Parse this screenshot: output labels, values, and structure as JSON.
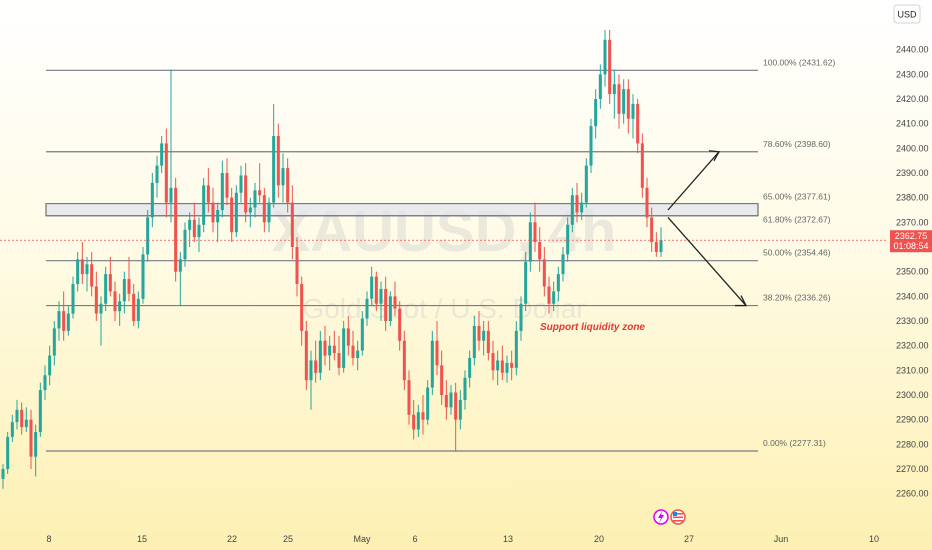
{
  "currency_button": "USD",
  "watermark": {
    "symbol": "XAUUSD, 4h",
    "description": "Gold Spot / U.S. Dollar"
  },
  "current_price": {
    "price": "2362.75",
    "countdown": "01:08:54",
    "value": 2362.75
  },
  "annotation": "Support liquidity zone",
  "fib_levels": [
    {
      "label": "100.00% (2431.62)",
      "value": 2431.62
    },
    {
      "label": "78.60% (2398.60)",
      "value": 2398.6
    },
    {
      "label": "65.00% (2377.61)",
      "value": 2377.61
    },
    {
      "label": "61.80% (2372.67)",
      "value": 2372.67
    },
    {
      "label": "50.00% (2354.46)",
      "value": 2354.46
    },
    {
      "label": "38.20% (2336.26)",
      "value": 2336.26
    },
    {
      "label": "0.00% (2277.31)",
      "value": 2277.31
    }
  ],
  "colors": {
    "up": "#26a69a",
    "down": "#ef5350",
    "fib_line": "#787b86",
    "zone": "#e0e3eb",
    "price_tag": "#ef5350",
    "annotation": "#e53935"
  },
  "chart_data": {
    "type": "candlestick",
    "symbol": "XAUUSD",
    "timeframe": "4h",
    "ylim": [
      2255,
      2450
    ],
    "yticks": [
      2260,
      2270,
      2280,
      2290,
      2300,
      2310,
      2320,
      2330,
      2340,
      2350,
      2360,
      2370,
      2380,
      2390,
      2400,
      2410,
      2420,
      2430,
      2440
    ],
    "xticks": [
      "8",
      "15",
      "22",
      "25",
      "May",
      "6",
      "13",
      "20",
      "27",
      "Jun",
      "10"
    ],
    "zone": {
      "low": 2372.67,
      "high": 2377.61
    },
    "projection": [
      {
        "from": [
          2375,
          "20"
        ],
        "direction": "up",
        "target": 2398.6
      },
      {
        "from": [
          2373,
          "20"
        ],
        "direction": "down",
        "target": 2336.26
      }
    ],
    "candles": [
      [
        2266,
        2272,
        2262,
        2270
      ],
      [
        2270,
        2285,
        2268,
        2283
      ],
      [
        2283,
        2292,
        2281,
        2289
      ],
      [
        2289,
        2298,
        2286,
        2294
      ],
      [
        2294,
        2297,
        2284,
        2287
      ],
      [
        2287,
        2295,
        2285,
        2290
      ],
      [
        2290,
        2294,
        2270,
        2275
      ],
      [
        2275,
        2288,
        2267,
        2285
      ],
      [
        2285,
        2305,
        2283,
        2302
      ],
      [
        2302,
        2312,
        2298,
        2308
      ],
      [
        2308,
        2320,
        2304,
        2316
      ],
      [
        2316,
        2330,
        2312,
        2327
      ],
      [
        2327,
        2338,
        2322,
        2334
      ],
      [
        2334,
        2342,
        2322,
        2326
      ],
      [
        2326,
        2336,
        2324,
        2333
      ],
      [
        2333,
        2348,
        2331,
        2345
      ],
      [
        2345,
        2358,
        2342,
        2355
      ],
      [
        2355,
        2362,
        2345,
        2349
      ],
      [
        2349,
        2356,
        2342,
        2353
      ],
      [
        2353,
        2358,
        2340,
        2344
      ],
      [
        2344,
        2350,
        2330,
        2333
      ],
      [
        2333,
        2340,
        2320,
        2337
      ],
      [
        2337,
        2352,
        2334,
        2349
      ],
      [
        2349,
        2356,
        2340,
        2342
      ],
      [
        2342,
        2346,
        2330,
        2334
      ],
      [
        2334,
        2341,
        2328,
        2338
      ],
      [
        2338,
        2350,
        2333,
        2347
      ],
      [
        2347,
        2356,
        2338,
        2341
      ],
      [
        2341,
        2345,
        2328,
        2330
      ],
      [
        2330,
        2342,
        2327,
        2339
      ],
      [
        2339,
        2360,
        2337,
        2357
      ],
      [
        2357,
        2375,
        2354,
        2372
      ],
      [
        2372,
        2390,
        2368,
        2386
      ],
      [
        2386,
        2397,
        2380,
        2393
      ],
      [
        2393,
        2405,
        2390,
        2402
      ],
      [
        2402,
        2408,
        2372,
        2378
      ],
      [
        2378,
        2432,
        2370,
        2384
      ],
      [
        2384,
        2388,
        2346,
        2350
      ],
      [
        2350,
        2358,
        2336,
        2355
      ],
      [
        2355,
        2370,
        2352,
        2367
      ],
      [
        2367,
        2374,
        2360,
        2371
      ],
      [
        2371,
        2378,
        2362,
        2364
      ],
      [
        2364,
        2372,
        2358,
        2369
      ],
      [
        2369,
        2388,
        2366,
        2385
      ],
      [
        2385,
        2392,
        2374,
        2378
      ],
      [
        2378,
        2384,
        2366,
        2370
      ],
      [
        2370,
        2378,
        2362,
        2375
      ],
      [
        2375,
        2395,
        2372,
        2390
      ],
      [
        2390,
        2396,
        2377,
        2380
      ],
      [
        2380,
        2384,
        2362,
        2366
      ],
      [
        2366,
        2385,
        2364,
        2382
      ],
      [
        2382,
        2393,
        2378,
        2389
      ],
      [
        2389,
        2394,
        2370,
        2374
      ],
      [
        2374,
        2380,
        2368,
        2376
      ],
      [
        2376,
        2386,
        2372,
        2383
      ],
      [
        2383,
        2394,
        2378,
        2381
      ],
      [
        2381,
        2384,
        2366,
        2370
      ],
      [
        2370,
        2380,
        2366,
        2378
      ],
      [
        2378,
        2418,
        2376,
        2405
      ],
      [
        2405,
        2410,
        2380,
        2385
      ],
      [
        2385,
        2398,
        2378,
        2392
      ],
      [
        2392,
        2396,
        2374,
        2378
      ],
      [
        2378,
        2385,
        2355,
        2360
      ],
      [
        2360,
        2364,
        2340,
        2345
      ],
      [
        2345,
        2348,
        2320,
        2326
      ],
      [
        2326,
        2330,
        2302,
        2306
      ],
      [
        2306,
        2318,
        2294,
        2314
      ],
      [
        2314,
        2322,
        2305,
        2309
      ],
      [
        2309,
        2326,
        2306,
        2322
      ],
      [
        2322,
        2328,
        2312,
        2316
      ],
      [
        2316,
        2324,
        2310,
        2320
      ],
      [
        2320,
        2326,
        2314,
        2317
      ],
      [
        2317,
        2324,
        2308,
        2311
      ],
      [
        2311,
        2330,
        2309,
        2327
      ],
      [
        2327,
        2332,
        2316,
        2320
      ],
      [
        2320,
        2326,
        2312,
        2315
      ],
      [
        2315,
        2322,
        2310,
        2318
      ],
      [
        2318,
        2334,
        2316,
        2331
      ],
      [
        2331,
        2342,
        2328,
        2339
      ],
      [
        2339,
        2352,
        2336,
        2348
      ],
      [
        2348,
        2350,
        2334,
        2337
      ],
      [
        2337,
        2346,
        2330,
        2343
      ],
      [
        2343,
        2348,
        2326,
        2330
      ],
      [
        2330,
        2342,
        2328,
        2340
      ],
      [
        2340,
        2346,
        2332,
        2335
      ],
      [
        2335,
        2338,
        2318,
        2322
      ],
      [
        2322,
        2326,
        2302,
        2306
      ],
      [
        2306,
        2310,
        2288,
        2292
      ],
      [
        2292,
        2298,
        2282,
        2286
      ],
      [
        2286,
        2296,
        2283,
        2293
      ],
      [
        2293,
        2300,
        2284,
        2290
      ],
      [
        2290,
        2306,
        2288,
        2303
      ],
      [
        2303,
        2326,
        2300,
        2322
      ],
      [
        2322,
        2330,
        2308,
        2312
      ],
      [
        2312,
        2318,
        2296,
        2300
      ],
      [
        2300,
        2306,
        2290,
        2295
      ],
      [
        2295,
        2304,
        2292,
        2301
      ],
      [
        2301,
        2305,
        2277,
        2290
      ],
      [
        2290,
        2302,
        2286,
        2298
      ],
      [
        2298,
        2310,
        2294,
        2307
      ],
      [
        2307,
        2318,
        2303,
        2315
      ],
      [
        2315,
        2332,
        2312,
        2328
      ],
      [
        2328,
        2334,
        2318,
        2322
      ],
      [
        2322,
        2330,
        2316,
        2326
      ],
      [
        2326,
        2330,
        2314,
        2317
      ],
      [
        2317,
        2322,
        2306,
        2310
      ],
      [
        2310,
        2318,
        2304,
        2314
      ],
      [
        2314,
        2320,
        2306,
        2309
      ],
      [
        2309,
        2316,
        2305,
        2313
      ],
      [
        2313,
        2318,
        2306,
        2311
      ],
      [
        2311,
        2330,
        2308,
        2326
      ],
      [
        2326,
        2340,
        2322,
        2337
      ],
      [
        2337,
        2358,
        2334,
        2354
      ],
      [
        2354,
        2374,
        2350,
        2370
      ],
      [
        2370,
        2378,
        2358,
        2362
      ],
      [
        2362,
        2368,
        2350,
        2355
      ],
      [
        2355,
        2360,
        2340,
        2344
      ],
      [
        2344,
        2348,
        2333,
        2337
      ],
      [
        2337,
        2346,
        2334,
        2342
      ],
      [
        2342,
        2352,
        2338,
        2349
      ],
      [
        2349,
        2360,
        2346,
        2357
      ],
      [
        2357,
        2372,
        2354,
        2369
      ],
      [
        2369,
        2384,
        2366,
        2381
      ],
      [
        2381,
        2386,
        2370,
        2374
      ],
      [
        2374,
        2382,
        2371,
        2378
      ],
      [
        2378,
        2396,
        2376,
        2393
      ],
      [
        2393,
        2412,
        2390,
        2409
      ],
      [
        2409,
        2424,
        2404,
        2420
      ],
      [
        2420,
        2434,
        2416,
        2430
      ],
      [
        2430,
        2448,
        2425,
        2444
      ],
      [
        2444,
        2448,
        2418,
        2422
      ],
      [
        2422,
        2432,
        2412,
        2426
      ],
      [
        2426,
        2430,
        2408,
        2414
      ],
      [
        2414,
        2428,
        2410,
        2424
      ],
      [
        2424,
        2428,
        2406,
        2412
      ],
      [
        2412,
        2422,
        2404,
        2418
      ],
      [
        2418,
        2420,
        2398,
        2402
      ],
      [
        2402,
        2406,
        2380,
        2384
      ],
      [
        2384,
        2388,
        2368,
        2372
      ],
      [
        2372,
        2376,
        2358,
        2362
      ],
      [
        2362,
        2366,
        2356,
        2358
      ],
      [
        2358,
        2368,
        2356,
        2362.75
      ]
    ]
  }
}
